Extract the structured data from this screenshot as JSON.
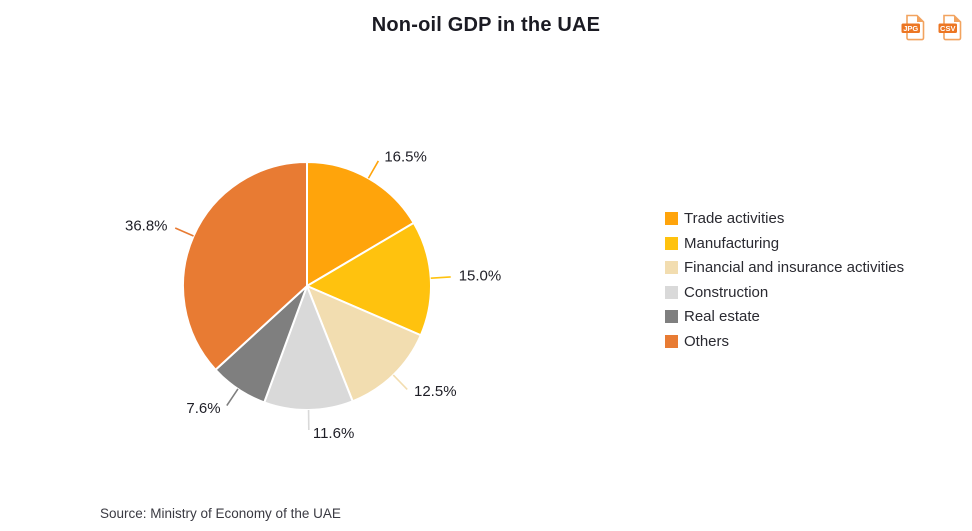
{
  "title": "Non-oil GDP in the UAE",
  "source": "Source: Ministry of Economy of the UAE",
  "export": {
    "jpg_label": "JPG",
    "csv_label": "CSV"
  },
  "colors": {
    "icon_band_orange": "#EC7623",
    "icon_outline_orange": "#F2A35F",
    "title_text": "#1b1b23",
    "label_text": "#1e1e26",
    "source_text": "#3a3a42",
    "slice_border": "#ffffff"
  },
  "chart_data": {
    "type": "pie",
    "title": "Non-oil GDP in the UAE",
    "unit": "%",
    "start_angle_deg": 0,
    "direction": "clockwise",
    "legend_position": "right",
    "slices": [
      {
        "label": "Trade activities",
        "value": 16.5,
        "display": "16.5%",
        "color": "#FFA40B"
      },
      {
        "label": "Manufacturing",
        "value": 15.0,
        "display": "15.0%",
        "color": "#FFC20E"
      },
      {
        "label": "Financial and insurance activities",
        "value": 12.5,
        "display": "12.5%",
        "color": "#F2DDB0"
      },
      {
        "label": "Construction",
        "value": 11.6,
        "display": "11.6%",
        "color": "#D9D9D9"
      },
      {
        "label": "Real estate",
        "value": 7.6,
        "display": "7.6%",
        "color": "#7F7F7F"
      },
      {
        "label": "Others",
        "value": 36.8,
        "display": "36.8%",
        "color": "#E87B33"
      }
    ]
  }
}
